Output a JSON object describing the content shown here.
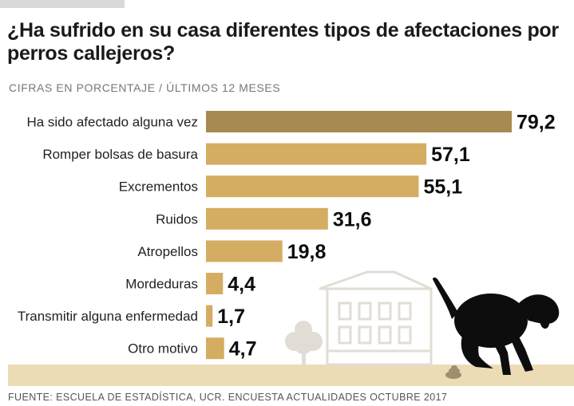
{
  "title": "¿Ha sufrido en su casa diferentes tipos de afectaciones por perros callejeros?",
  "subtitle": "CIFRAS EN PORCENTAJE  / ÚLTIMOS 12 MESES",
  "source": "FUENTE: ESCUELA DE ESTADÍSTICA, UCR. ENCUESTA ACTUALIDADES OCTUBRE 2017",
  "colors": {
    "highlight_bar": "#a68a52",
    "bar": "#d4ad63",
    "ground": "#ecdcb6",
    "illustration": "#e2ddd4",
    "dog": "#0d0d0d",
    "dropping": "#a08e6e"
  },
  "illustrations": [
    "house-illustration",
    "tree-illustration",
    "dog-illustration",
    "dropping-icon"
  ],
  "chart_data": {
    "type": "bar",
    "orientation": "horizontal",
    "title": "¿Ha sufrido en su casa diferentes tipos de afectaciones por perros callejeros?",
    "ylabel": "",
    "xlabel": "",
    "xlim": [
      0,
      79.2
    ],
    "grid": false,
    "legend": "none",
    "categories": [
      "Ha sido afectado alguna vez",
      "Romper bolsas de basura",
      "Excrementos",
      "Ruidos",
      "Atropellos",
      "Mordeduras",
      "Transmitir alguna enfermedad",
      "Otro motivo"
    ],
    "values": [
      79.2,
      57.1,
      55.1,
      31.6,
      19.8,
      4.4,
      1.7,
      4.7
    ],
    "value_labels": [
      "79,2",
      "57,1",
      "55,1",
      "31,6",
      "19,8",
      "4,4",
      "1,7",
      "4,7"
    ],
    "highlight_index": 0
  }
}
